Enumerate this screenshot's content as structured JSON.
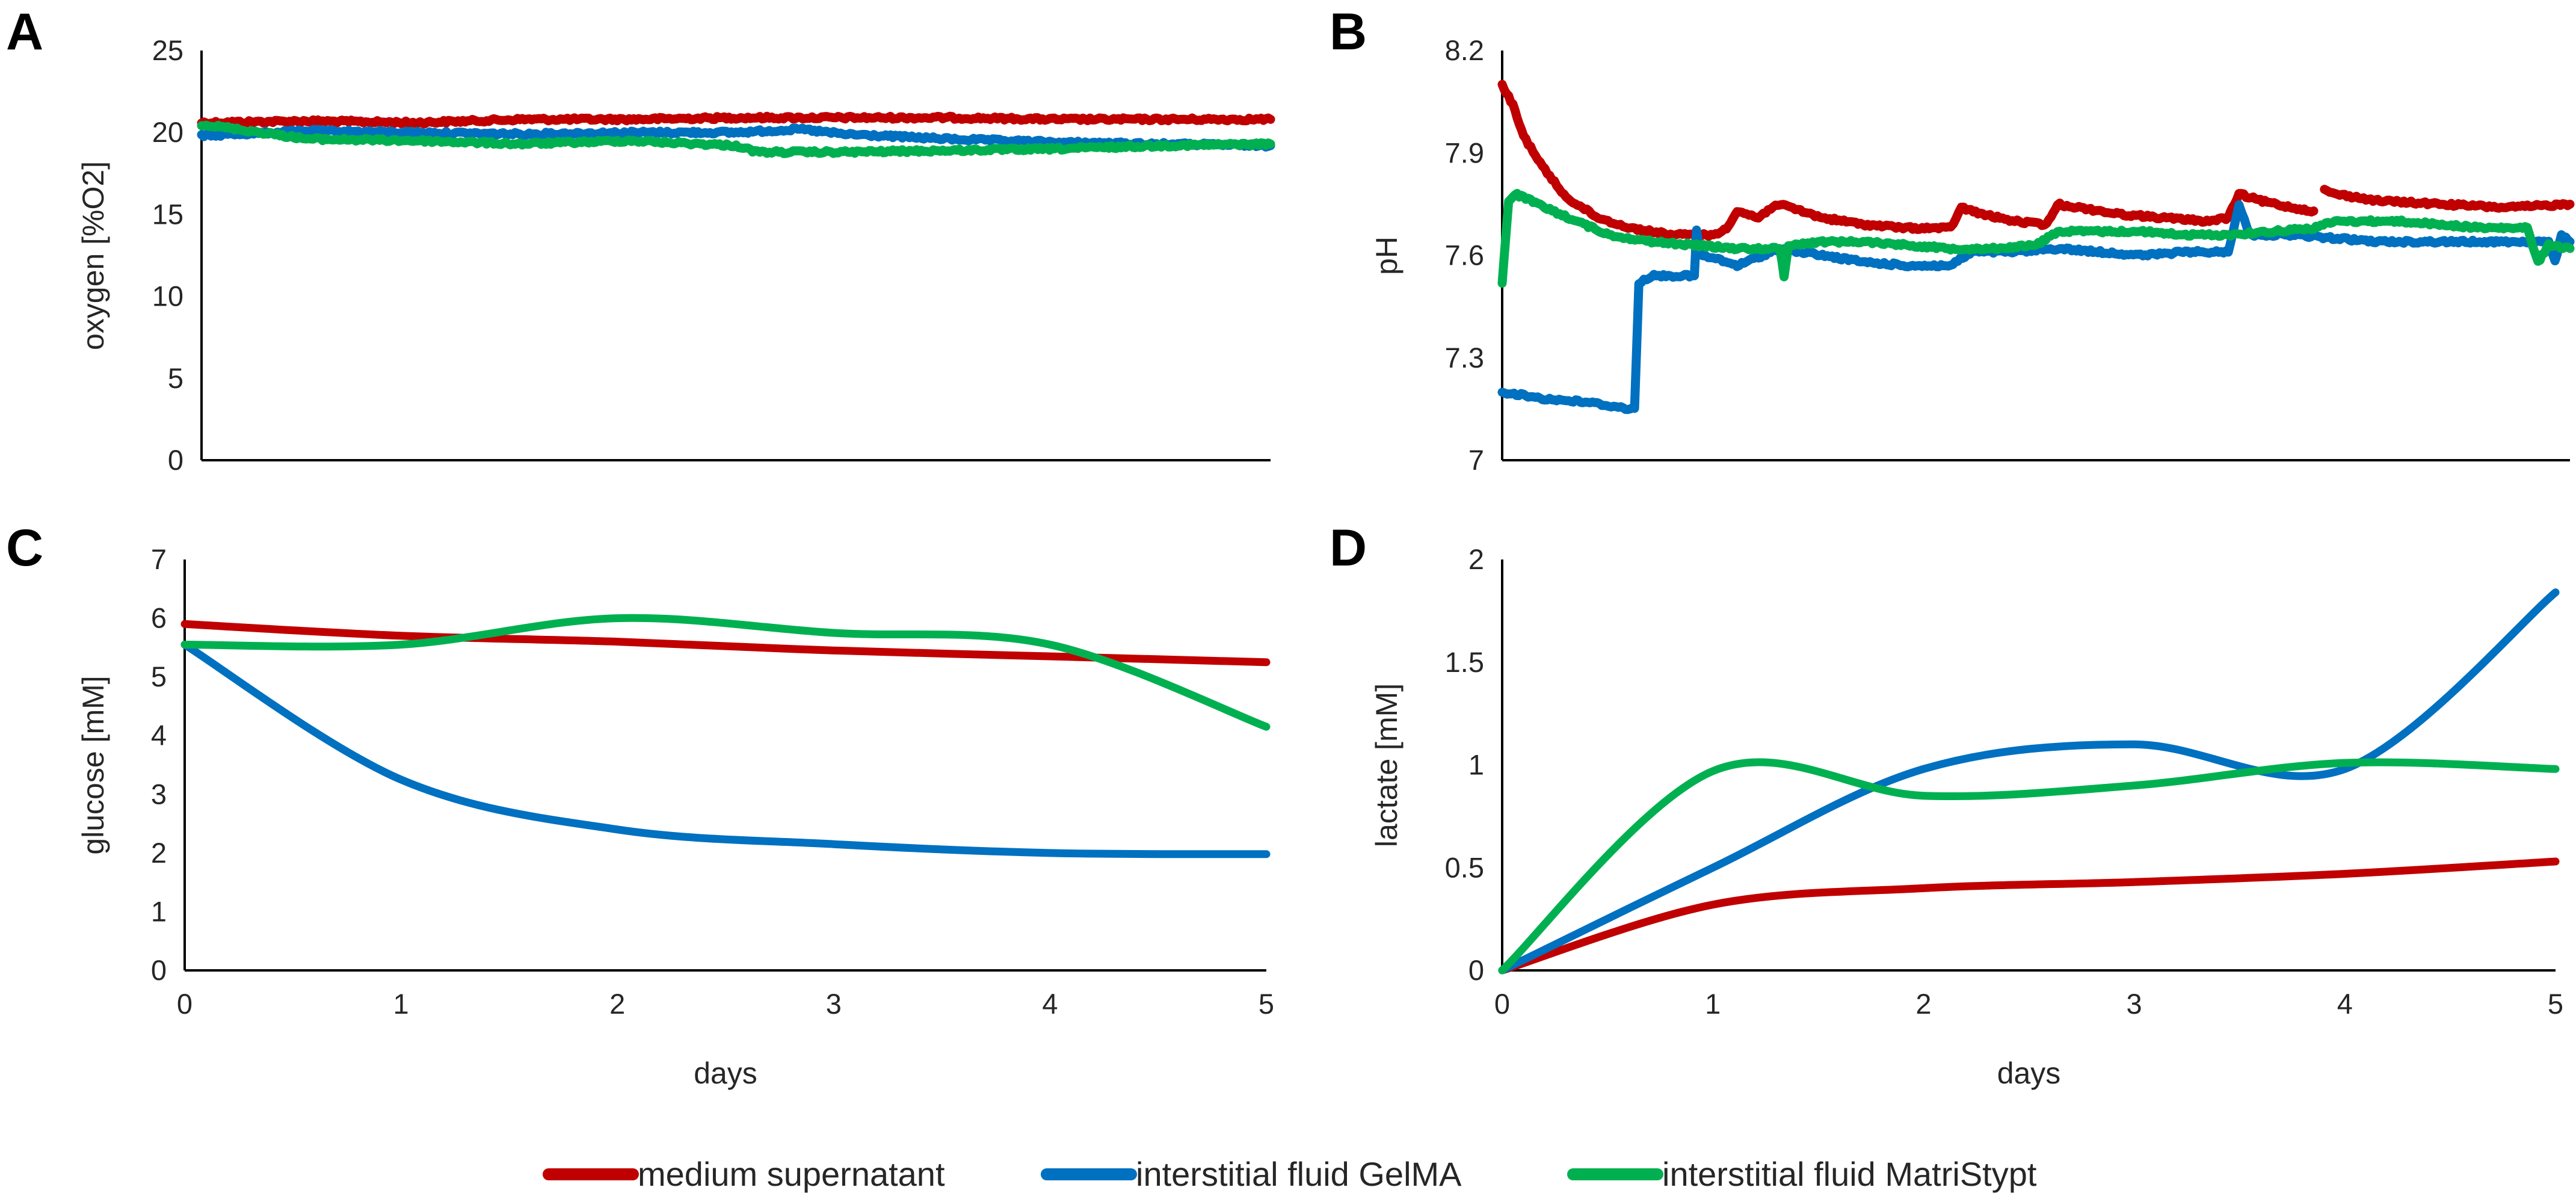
{
  "colors": {
    "medium_supernatant": "#C00000",
    "interstitial_gelma": "#0070C0",
    "interstitial_matristypt": "#00B050"
  },
  "legend": [
    {
      "key": "medium_supernatant",
      "label": "medium supernatant"
    },
    {
      "key": "interstitial_gelma",
      "label": "interstitial fluid GelMA"
    },
    {
      "key": "interstitial_matristypt",
      "label": "interstitial fluid MatriStypt"
    }
  ],
  "chart_data": [
    {
      "panel": "A",
      "type": "line",
      "xlabel": "",
      "ylabel": "oxygen [%O2]",
      "xlim": [
        0,
        5
      ],
      "ylim": [
        0,
        25
      ],
      "yticks": [
        "0",
        "5",
        "10",
        "15",
        "20",
        "25"
      ],
      "xticks": [],
      "noisy": true,
      "series": [
        {
          "key": "medium_supernatant",
          "name": "medium supernatant",
          "x": [
            0,
            0.5,
            1,
            1.5,
            2,
            2.5,
            3,
            3.5,
            4,
            4.5,
            5
          ],
          "y": [
            20.6,
            20.7,
            20.6,
            20.8,
            20.8,
            20.9,
            20.9,
            20.9,
            20.8,
            20.8,
            20.8
          ]
        },
        {
          "key": "interstitial_gelma",
          "name": "interstitial fluid GelMA",
          "x": [
            0,
            0.5,
            1,
            1.5,
            2,
            2.5,
            2.8,
            3,
            3.5,
            4,
            4.5,
            5
          ],
          "y": [
            19.8,
            20.1,
            20.0,
            19.9,
            20.0,
            20.0,
            20.2,
            19.9,
            19.6,
            19.4,
            19.3,
            19.2
          ]
        },
        {
          "key": "interstitial_matristypt",
          "name": "interstitial fluid MatriStypt",
          "x": [
            0,
            0.5,
            1,
            1.5,
            2,
            2.5,
            2.6,
            3,
            3.5,
            4,
            4.5,
            5
          ],
          "y": [
            20.5,
            19.6,
            19.5,
            19.3,
            19.5,
            19.2,
            18.8,
            18.8,
            18.9,
            19.0,
            19.2,
            19.3
          ]
        }
      ]
    },
    {
      "panel": "B",
      "type": "line",
      "xlabel": "",
      "ylabel": "pH",
      "xlim": [
        0,
        5
      ],
      "ylim": [
        7.0,
        8.2
      ],
      "yticks": [
        "7",
        "7.3",
        "7.6",
        "7.9",
        "8.2"
      ],
      "xticks": [],
      "noisy": true,
      "series": [
        {
          "key": "medium_supernatant",
          "name": "medium supernatant",
          "segments": [
            {
              "x": [
                0,
                0.05,
                0.1,
                0.2,
                0.3,
                0.45,
                0.6,
                0.8,
                1.0,
                1.05,
                1.1,
                1.2,
                1.28,
                1.35,
                1.5,
                1.7,
                1.9,
                2.1,
                2.15,
                2.25,
                2.4,
                2.55,
                2.6,
                2.7,
                2.9,
                3.1,
                3.3,
                3.4,
                3.45,
                3.55,
                3.7,
                3.8
              ],
              "y": [
                8.1,
                8.04,
                7.95,
                7.85,
                7.77,
                7.71,
                7.68,
                7.66,
                7.66,
                7.68,
                7.73,
                7.71,
                7.75,
                7.74,
                7.71,
                7.69,
                7.68,
                7.68,
                7.74,
                7.72,
                7.7,
                7.69,
                7.75,
                7.74,
                7.72,
                7.71,
                7.7,
                7.71,
                7.78,
                7.76,
                7.74,
                7.73
              ]
            },
            {
              "x": [
                3.85,
                3.9,
                4.1,
                4.4,
                4.7,
                5.0
              ],
              "y": [
                7.79,
                7.78,
                7.76,
                7.75,
                7.74,
                7.75
              ]
            }
          ]
        },
        {
          "key": "interstitial_gelma",
          "name": "interstitial fluid GelMA",
          "segments": [
            {
              "x": [
                0,
                0.2,
                0.4,
                0.6,
                0.62,
                0.64,
                0.7,
                0.9,
                0.91,
                0.93,
                1.0,
                1.1,
                1.3,
                1.5,
                1.7,
                1.9,
                2.1,
                2.2,
                2.4,
                2.6,
                2.8,
                3.0,
                3.2,
                3.4,
                3.45,
                3.5,
                3.7,
                3.9,
                4.1,
                4.4,
                4.7,
                4.9,
                4.93,
                4.96,
                5.0
              ],
              "y": [
                7.2,
                7.18,
                7.17,
                7.15,
                7.15,
                7.52,
                7.54,
                7.54,
                7.67,
                7.6,
                7.59,
                7.57,
                7.62,
                7.6,
                7.58,
                7.57,
                7.57,
                7.61,
                7.61,
                7.62,
                7.61,
                7.6,
                7.61,
                7.61,
                7.75,
                7.66,
                7.66,
                7.65,
                7.64,
                7.64,
                7.64,
                7.64,
                7.58,
                7.66,
                7.64
              ]
            }
          ]
        },
        {
          "key": "interstitial_matristypt",
          "name": "interstitial fluid MatriStypt",
          "segments": [
            {
              "x": [
                0,
                0.03,
                0.06,
                0.1,
                0.2,
                0.35,
                0.5,
                0.7,
                0.9,
                1.1,
                1.3,
                1.32,
                1.34,
                1.5,
                1.7,
                1.9,
                2.1,
                2.3,
                2.5,
                2.6,
                2.8,
                3.0,
                3.2,
                3.4,
                3.6,
                3.8,
                3.9,
                4.0,
                4.2,
                4.4,
                4.6,
                4.8,
                4.85,
                4.9,
                5.0
              ],
              "y": [
                7.52,
                7.76,
                7.78,
                7.77,
                7.74,
                7.7,
                7.66,
                7.64,
                7.63,
                7.62,
                7.62,
                7.54,
                7.63,
                7.64,
                7.64,
                7.63,
                7.62,
                7.62,
                7.63,
                7.67,
                7.67,
                7.67,
                7.66,
                7.66,
                7.67,
                7.68,
                7.7,
                7.7,
                7.7,
                7.69,
                7.68,
                7.68,
                7.58,
                7.63,
                7.62
              ]
            }
          ]
        }
      ]
    },
    {
      "panel": "C",
      "type": "line",
      "xlabel": "days",
      "ylabel": "glucose [mM]",
      "xlim": [
        0,
        5
      ],
      "ylim": [
        0,
        7
      ],
      "yticks": [
        "0",
        "1",
        "2",
        "3",
        "4",
        "5",
        "6",
        "7"
      ],
      "xticks": [
        "0",
        "1",
        "2",
        "3",
        "4",
        "5"
      ],
      "noisy": false,
      "series": [
        {
          "key": "medium_supernatant",
          "name": "medium supernatant",
          "x": [
            0,
            1,
            2,
            3,
            4,
            5
          ],
          "y": [
            5.9,
            5.7,
            5.6,
            5.45,
            5.35,
            5.25
          ]
        },
        {
          "key": "interstitial_gelma",
          "name": "interstitial fluid GelMA",
          "x": [
            0,
            1,
            2,
            3,
            4,
            5
          ],
          "y": [
            5.55,
            3.25,
            2.4,
            2.15,
            2.0,
            1.98
          ]
        },
        {
          "key": "interstitial_matristypt",
          "name": "interstitial fluid MatriStypt",
          "x": [
            0,
            1,
            2,
            3,
            4,
            5
          ],
          "y": [
            5.55,
            5.55,
            6.0,
            5.75,
            5.55,
            4.15
          ]
        }
      ]
    },
    {
      "panel": "D",
      "type": "line",
      "xlabel": "days",
      "ylabel": "lactate [mM]",
      "xlim": [
        0,
        5
      ],
      "ylim": [
        0,
        2
      ],
      "yticks": [
        "0",
        "0.5",
        "1",
        "1.5",
        "2"
      ],
      "xticks": [
        "0",
        "1",
        "2",
        "3",
        "4",
        "5"
      ],
      "noisy": false,
      "series": [
        {
          "key": "medium_supernatant",
          "name": "medium supernatant",
          "x": [
            0,
            1,
            2,
            3,
            4,
            5
          ],
          "y": [
            0,
            0.32,
            0.4,
            0.43,
            0.47,
            0.53
          ]
        },
        {
          "key": "interstitial_gelma",
          "name": "interstitial fluid GelMA",
          "x": [
            0,
            1,
            2,
            3,
            4,
            5
          ],
          "y": [
            0,
            0.5,
            0.98,
            1.1,
            0.98,
            1.84
          ]
        },
        {
          "key": "interstitial_matristypt",
          "name": "interstitial fluid MatriStypt",
          "x": [
            0,
            1,
            2,
            3,
            4,
            5
          ],
          "y": [
            0,
            0.97,
            0.85,
            0.9,
            1.01,
            0.98
          ]
        }
      ]
    }
  ]
}
